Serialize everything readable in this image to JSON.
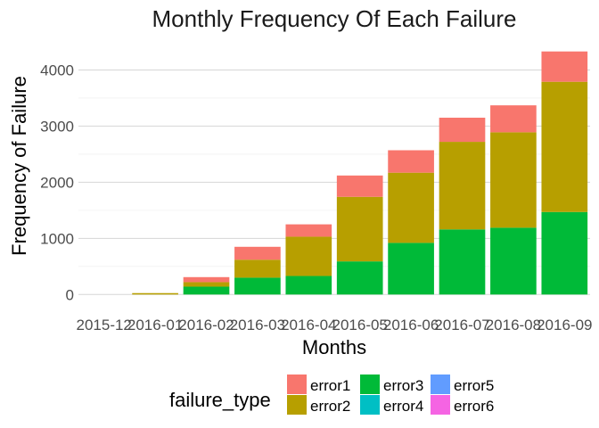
{
  "chart_data": {
    "type": "bar",
    "stacked": true,
    "title": "Monthly Frequency Of Each Failure",
    "xlabel": "Months",
    "ylabel": "Frequency of Failure",
    "categories": [
      "2015-12",
      "2016-01",
      "2016-02",
      "2016-03",
      "2016-04",
      "2016-05",
      "2016-06",
      "2016-07",
      "2016-08",
      "2016-09"
    ],
    "ylim": [
      0,
      4500
    ],
    "yticks": [
      0,
      1000,
      2000,
      3000,
      4000
    ],
    "grid": true,
    "legend": {
      "title": "failure_type",
      "placement": "bottom",
      "entries": [
        "error1",
        "error2",
        "error3",
        "error4",
        "error5",
        "error6"
      ]
    },
    "series": [
      {
        "name": "error1",
        "color": "#F8766D",
        "values": [
          0,
          0,
          90,
          230,
          220,
          380,
          400,
          430,
          480,
          540
        ]
      },
      {
        "name": "error2",
        "color": "#B79F00",
        "values": [
          0,
          25,
          80,
          320,
          700,
          1150,
          1250,
          1560,
          1700,
          2320
        ]
      },
      {
        "name": "error3",
        "color": "#00BA38",
        "values": [
          0,
          0,
          140,
          300,
          330,
          590,
          920,
          1160,
          1190,
          1470
        ]
      },
      {
        "name": "error4",
        "color": "#00BFC4",
        "values": [
          0,
          0,
          0,
          0,
          0,
          0,
          0,
          0,
          0,
          0
        ]
      },
      {
        "name": "error5",
        "color": "#619CFF",
        "values": [
          0,
          0,
          0,
          0,
          0,
          0,
          0,
          0,
          0,
          0
        ]
      },
      {
        "name": "error6",
        "color": "#F564E3",
        "values": [
          0,
          0,
          0,
          0,
          0,
          0,
          0,
          0,
          0,
          0
        ]
      }
    ]
  }
}
